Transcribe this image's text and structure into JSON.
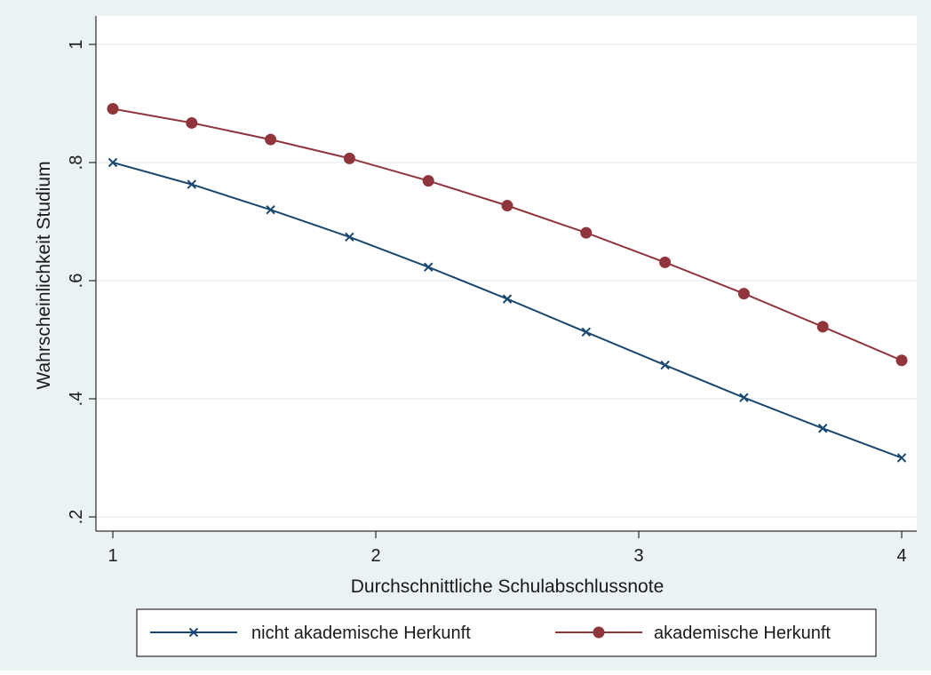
{
  "colors": {
    "outer_background": "#eaf2f3",
    "plot_background": "#ffffff",
    "grid": "#eaf2f3",
    "series_1": "#1a476f",
    "series_2": "#90353b"
  },
  "chart_data": {
    "type": "line",
    "title": "",
    "xlabel": "Durchschnittliche Schulabschlussnote",
    "ylabel": "Wahrscheinlichkeit Studium",
    "x": [
      1.0,
      1.3,
      1.6,
      1.9,
      2.2,
      2.5,
      2.8,
      3.1,
      3.4,
      3.7,
      4.0
    ],
    "xlim": [
      1.0,
      4.0
    ],
    "ylim": [
      0.2,
      1.0
    ],
    "xticks": [
      1,
      2,
      3,
      4
    ],
    "xtick_labels": [
      "1",
      "2",
      "3",
      "4"
    ],
    "yticks": [
      0.2,
      0.4,
      0.6,
      0.8,
      1.0
    ],
    "ytick_labels": [
      ".2",
      ".4",
      ".6",
      ".8",
      "1"
    ],
    "grid": true,
    "legend_position": "bottom",
    "series": [
      {
        "name": "nicht akademische Herkunft",
        "marker": "x",
        "values": [
          0.8,
          0.763,
          0.72,
          0.674,
          0.623,
          0.569,
          0.513,
          0.457,
          0.402,
          0.35,
          0.3
        ]
      },
      {
        "name": "akademische Herkunft",
        "marker": "circle",
        "values": [
          0.891,
          0.867,
          0.839,
          0.807,
          0.769,
          0.727,
          0.681,
          0.631,
          0.578,
          0.522,
          0.465
        ]
      }
    ]
  }
}
